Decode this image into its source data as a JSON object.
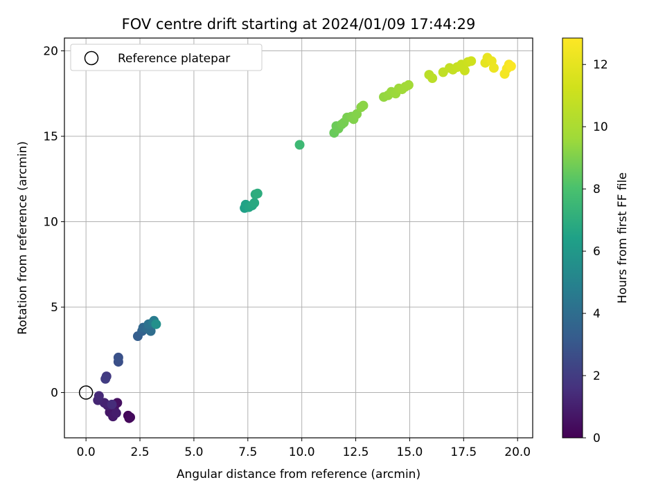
{
  "chart_data": {
    "type": "scatter",
    "title": "FOV centre drift starting at 2024/01/09 17:44:29",
    "xlabel": "Angular distance from reference (arcmin)",
    "ylabel": "Rotation from reference (arcmin)",
    "xlim": [
      -1.0,
      20.7
    ],
    "ylim": [
      -2.65,
      20.75
    ],
    "xticks": [
      0.0,
      2.5,
      5.0,
      7.5,
      10.0,
      12.5,
      15.0,
      17.5,
      20.0
    ],
    "xtick_labels": [
      "0.0",
      "2.5",
      "5.0",
      "7.5",
      "10.0",
      "12.5",
      "15.0",
      "17.5",
      "20.0"
    ],
    "yticks": [
      0,
      5,
      10,
      15,
      20
    ],
    "ytick_labels": [
      "0",
      "5",
      "10",
      "15",
      "20"
    ],
    "grid": true,
    "legend": {
      "placement": "upper-left",
      "label": "Reference platepar"
    },
    "reference_point": {
      "x": 0.0,
      "y": 0.0
    },
    "colorbar": {
      "label": "Hours from first FF file",
      "colormap": "viridis",
      "range": [
        0,
        12.85
      ],
      "ticks": [
        0,
        2,
        4,
        6,
        8,
        10,
        12
      ],
      "tick_labels": [
        "0",
        "2",
        "4",
        "6",
        "8",
        "10",
        "12"
      ]
    },
    "series": [
      {
        "points": [
          {
            "x": 2.0,
            "y": -1.5,
            "h": 0.1
          },
          {
            "x": 1.95,
            "y": -1.35,
            "h": 0.2
          },
          {
            "x": 2.05,
            "y": -1.45,
            "h": 0.3
          },
          {
            "x": 1.45,
            "y": -0.6,
            "h": 0.5
          },
          {
            "x": 1.3,
            "y": -0.9,
            "h": 0.6
          },
          {
            "x": 1.1,
            "y": -1.15,
            "h": 0.7
          },
          {
            "x": 1.25,
            "y": -1.4,
            "h": 0.8
          },
          {
            "x": 1.4,
            "y": -1.2,
            "h": 0.9
          },
          {
            "x": 1.0,
            "y": -0.75,
            "h": 1.0
          },
          {
            "x": 0.85,
            "y": -0.6,
            "h": 1.1
          },
          {
            "x": 0.55,
            "y": -0.45,
            "h": 1.2
          },
          {
            "x": 0.6,
            "y": -0.2,
            "h": 1.35
          },
          {
            "x": 1.2,
            "y": -0.7,
            "h": 1.45
          },
          {
            "x": 0.95,
            "y": 0.95,
            "h": 1.9
          },
          {
            "x": 0.9,
            "y": 0.8,
            "h": 2.0
          },
          {
            "x": 1.5,
            "y": 1.8,
            "h": 2.7
          },
          {
            "x": 1.5,
            "y": 2.05,
            "h": 2.8
          },
          {
            "x": 2.4,
            "y": 3.3,
            "h": 3.3
          },
          {
            "x": 2.6,
            "y": 3.6,
            "h": 3.5
          },
          {
            "x": 2.65,
            "y": 3.8,
            "h": 3.7
          },
          {
            "x": 2.85,
            "y": 3.75,
            "h": 3.9
          },
          {
            "x": 3.0,
            "y": 3.6,
            "h": 4.0
          },
          {
            "x": 2.9,
            "y": 4.0,
            "h": 4.2
          },
          {
            "x": 3.1,
            "y": 4.1,
            "h": 4.5
          },
          {
            "x": 3.15,
            "y": 4.2,
            "h": 4.7
          },
          {
            "x": 3.25,
            "y": 4.0,
            "h": 5.6
          },
          {
            "x": 7.35,
            "y": 10.8,
            "h": 6.4
          },
          {
            "x": 7.4,
            "y": 11.0,
            "h": 6.5
          },
          {
            "x": 7.55,
            "y": 10.85,
            "h": 6.6
          },
          {
            "x": 7.7,
            "y": 10.95,
            "h": 6.7
          },
          {
            "x": 7.8,
            "y": 11.1,
            "h": 6.8
          },
          {
            "x": 7.85,
            "y": 11.6,
            "h": 6.9
          },
          {
            "x": 7.95,
            "y": 11.65,
            "h": 7.0
          },
          {
            "x": 9.9,
            "y": 14.5,
            "h": 7.6
          },
          {
            "x": 11.5,
            "y": 15.2,
            "h": 8.6
          },
          {
            "x": 11.6,
            "y": 15.6,
            "h": 8.65
          },
          {
            "x": 11.7,
            "y": 15.45,
            "h": 8.7
          },
          {
            "x": 11.85,
            "y": 15.7,
            "h": 8.8
          },
          {
            "x": 11.95,
            "y": 15.8,
            "h": 8.85
          },
          {
            "x": 12.1,
            "y": 16.1,
            "h": 8.9
          },
          {
            "x": 12.3,
            "y": 16.15,
            "h": 9.0
          },
          {
            "x": 12.4,
            "y": 16.0,
            "h": 9.05
          },
          {
            "x": 12.55,
            "y": 16.3,
            "h": 9.1
          },
          {
            "x": 12.75,
            "y": 16.7,
            "h": 9.2
          },
          {
            "x": 12.85,
            "y": 16.8,
            "h": 9.25
          },
          {
            "x": 13.8,
            "y": 17.3,
            "h": 9.4
          },
          {
            "x": 14.0,
            "y": 17.4,
            "h": 9.45
          },
          {
            "x": 14.15,
            "y": 17.6,
            "h": 9.5
          },
          {
            "x": 14.35,
            "y": 17.5,
            "h": 9.55
          },
          {
            "x": 14.5,
            "y": 17.8,
            "h": 9.6
          },
          {
            "x": 14.65,
            "y": 17.75,
            "h": 9.65
          },
          {
            "x": 14.8,
            "y": 17.9,
            "h": 9.7
          },
          {
            "x": 14.95,
            "y": 18.0,
            "h": 9.75
          },
          {
            "x": 15.9,
            "y": 18.6,
            "h": 10.5
          },
          {
            "x": 16.05,
            "y": 18.4,
            "h": 10.55
          },
          {
            "x": 16.55,
            "y": 18.75,
            "h": 10.7
          },
          {
            "x": 16.85,
            "y": 19.0,
            "h": 10.8
          },
          {
            "x": 17.0,
            "y": 18.9,
            "h": 10.85
          },
          {
            "x": 17.2,
            "y": 19.05,
            "h": 10.9
          },
          {
            "x": 17.4,
            "y": 19.2,
            "h": 11.0
          },
          {
            "x": 17.55,
            "y": 18.85,
            "h": 11.05
          },
          {
            "x": 17.7,
            "y": 19.35,
            "h": 11.1
          },
          {
            "x": 17.85,
            "y": 19.4,
            "h": 11.2
          },
          {
            "x": 18.5,
            "y": 19.3,
            "h": 12.0
          },
          {
            "x": 18.6,
            "y": 19.6,
            "h": 12.1
          },
          {
            "x": 18.8,
            "y": 19.4,
            "h": 12.2
          },
          {
            "x": 18.9,
            "y": 19.0,
            "h": 12.25
          },
          {
            "x": 19.4,
            "y": 18.65,
            "h": 12.5
          },
          {
            "x": 19.5,
            "y": 18.95,
            "h": 12.55
          },
          {
            "x": 19.6,
            "y": 19.2,
            "h": 12.65
          },
          {
            "x": 19.7,
            "y": 19.1,
            "h": 12.75
          }
        ]
      }
    ]
  }
}
